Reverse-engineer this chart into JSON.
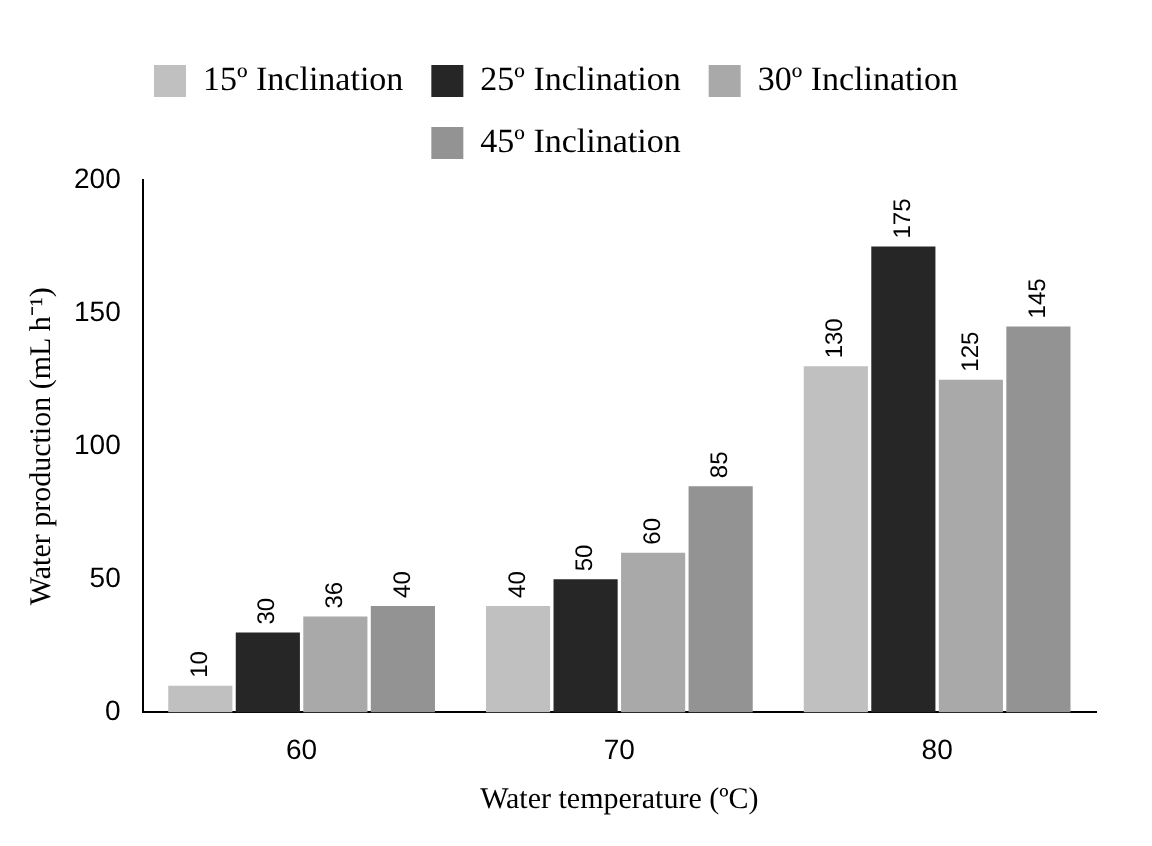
{
  "chart_data": {
    "type": "bar",
    "xlabel": "Water temperature (ºC)",
    "ylabel": "Water production (mL h⁻¹)",
    "categories": [
      "60",
      "70",
      "80"
    ],
    "series": [
      {
        "name": "15º Inclination",
        "color": "#c0c0c0",
        "values": [
          10,
          40,
          130
        ]
      },
      {
        "name": "25º Inclination",
        "color": "#262626",
        "values": [
          30,
          50,
          175
        ]
      },
      {
        "name": "30º Inclination",
        "color": "#a9a9a9",
        "values": [
          36,
          60,
          125
        ]
      },
      {
        "name": "45º Inclination",
        "color": "#939393",
        "values": [
          40,
          85,
          145
        ]
      }
    ],
    "ylim": [
      0,
      200
    ],
    "yticks": [
      0,
      50,
      100,
      150,
      200
    ],
    "grid": false,
    "legend": "top",
    "data_labels": true
  }
}
